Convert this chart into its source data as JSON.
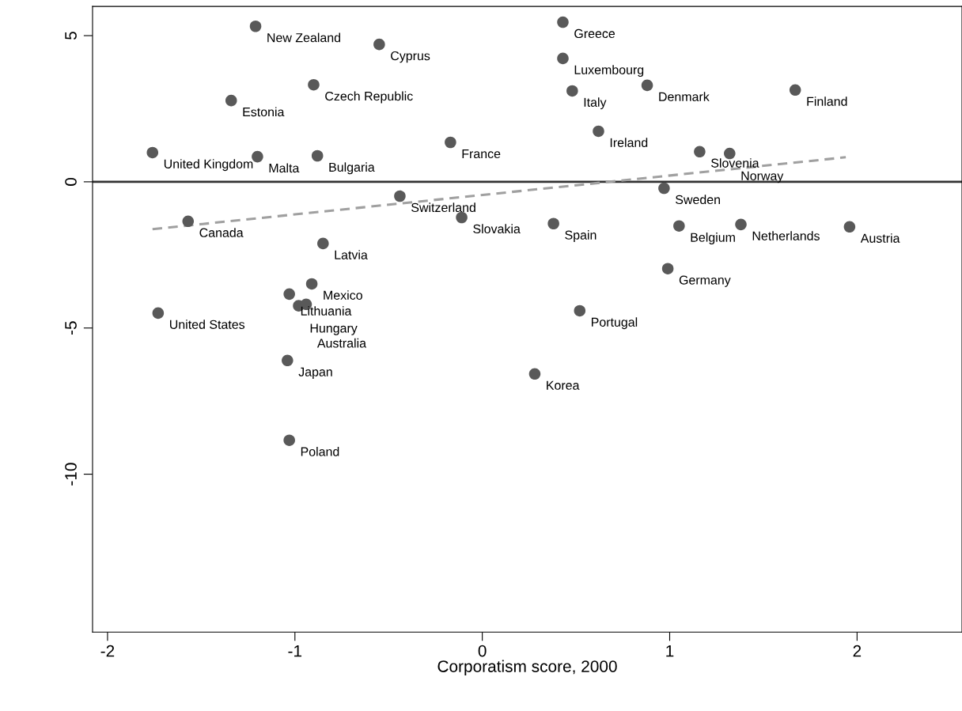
{
  "chart_data": {
    "type": "scatter",
    "xlabel": "Corporatism score, 2000",
    "xlim": [
      -2.08,
      2.56
    ],
    "ylim": [
      -15.4,
      6.0
    ],
    "xticks": [
      -2,
      -1,
      0,
      1,
      2
    ],
    "yticks": [
      5,
      0,
      -5,
      -10
    ],
    "grid": false,
    "legend": false,
    "marker": "circle",
    "series": [
      {
        "color": "#595959",
        "x": [
          -1.21,
          -0.55,
          0.43,
          0.43,
          -0.9,
          -1.34,
          0.48,
          0.88,
          1.67,
          0.62,
          -0.17,
          -1.76,
          -1.2,
          -0.88,
          1.16,
          1.32,
          0.97,
          -0.44,
          -0.11,
          -1.57,
          0.38,
          1.05,
          1.38,
          1.96,
          -0.85,
          0.99,
          -0.91,
          -1.03,
          -0.98,
          -0.94,
          -1.73,
          0.52,
          -1.04,
          0.28,
          -1.03
        ],
        "values": [
          5.32,
          4.7,
          5.46,
          4.22,
          3.32,
          2.78,
          3.11,
          3.3,
          3.14,
          1.73,
          1.35,
          1.0,
          0.86,
          0.89,
          1.03,
          0.97,
          -0.22,
          -0.49,
          -1.22,
          -1.35,
          -1.43,
          -1.51,
          -1.46,
          -1.54,
          -2.11,
          -2.97,
          -3.49,
          -3.84,
          -4.24,
          -4.19,
          -4.49,
          -4.41,
          -6.11,
          -6.57,
          -8.84
        ]
      },
      {
        "type": "line",
        "color": "#a0a0a0",
        "line_style": "dashed",
        "marker": "none",
        "x": [
          -1.76,
          1.94
        ],
        "values": [
          -1.62,
          0.84
        ]
      }
    ],
    "ref_lines": [
      {
        "axis": "y",
        "value": 0,
        "color": "#333333",
        "line_style": "solid"
      }
    ],
    "annotations": [
      {
        "text": "New Zealand",
        "x": -1.21,
        "y": 5.32
      },
      {
        "text": "Cyprus",
        "x": -0.55,
        "y": 4.7
      },
      {
        "text": "Greece",
        "x": 0.43,
        "y": 5.46
      },
      {
        "text": "Luxembourg",
        "x": 0.43,
        "y": 4.22
      },
      {
        "text": "Czech Republic",
        "x": -0.9,
        "y": 3.32
      },
      {
        "text": "Estonia",
        "x": -1.34,
        "y": 2.78
      },
      {
        "text": "Italy",
        "x": 0.48,
        "y": 3.11
      },
      {
        "text": "Denmark",
        "x": 0.88,
        "y": 3.3
      },
      {
        "text": "Finland",
        "x": 1.67,
        "y": 3.14
      },
      {
        "text": "Ireland",
        "x": 0.62,
        "y": 1.73
      },
      {
        "text": "France",
        "x": -0.17,
        "y": 1.35
      },
      {
        "text": "United Kingdom",
        "x": -1.76,
        "y": 1.0
      },
      {
        "text": "Malta",
        "x": -1.2,
        "y": 0.86
      },
      {
        "text": "Bulgaria",
        "x": -0.88,
        "y": 0.89
      },
      {
        "text": "Slovenia",
        "x": 1.16,
        "y": 1.03
      },
      {
        "text": "Norway",
        "x": 1.32,
        "y": 0.97
      },
      {
        "text": "Sweden",
        "x": 0.97,
        "y": -0.22
      },
      {
        "text": "Switzerland",
        "x": -0.44,
        "y": -0.49
      },
      {
        "text": "Slovakia",
        "x": -0.11,
        "y": -1.22
      },
      {
        "text": "Canada",
        "x": -1.57,
        "y": -1.35
      },
      {
        "text": "Spain",
        "x": 0.38,
        "y": -1.43
      },
      {
        "text": "Belgium",
        "x": 1.05,
        "y": -1.51
      },
      {
        "text": "Netherlands",
        "x": 1.38,
        "y": -1.46
      },
      {
        "text": "Austria",
        "x": 1.96,
        "y": -1.54
      },
      {
        "text": "Latvia",
        "x": -0.85,
        "y": -2.11
      },
      {
        "text": "Germany",
        "x": 0.99,
        "y": -2.97
      },
      {
        "text": "Mexico",
        "x": -0.91,
        "y": -3.49
      },
      {
        "text": "Lithuania",
        "x": -1.03,
        "y": -3.84
      },
      {
        "text": "Hungary",
        "x": -0.98,
        "y": -4.24
      },
      {
        "text": "Australia",
        "x": -0.94,
        "y": -4.19
      },
      {
        "text": "United States",
        "x": -1.73,
        "y": -4.49
      },
      {
        "text": "Portugal",
        "x": 0.52,
        "y": -4.41
      },
      {
        "text": "Japan",
        "x": -1.04,
        "y": -6.11
      },
      {
        "text": "Korea",
        "x": 0.28,
        "y": -6.57
      },
      {
        "text": "Poland",
        "x": -1.03,
        "y": -8.84
      }
    ]
  }
}
